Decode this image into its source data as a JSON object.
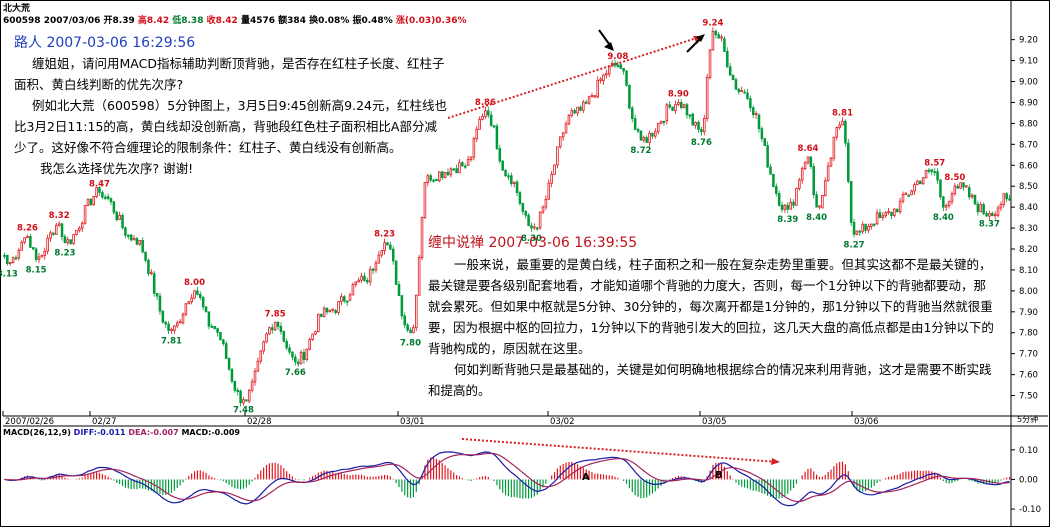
{
  "header": {
    "title": "北大荒",
    "code_date": "600598 2007/03/06",
    "open_label": "开8.39",
    "high_label": "高8.42",
    "low_label": "低8.38",
    "close_label": "收8.42",
    "volume_label": "量4576",
    "amount_label": "额384",
    "turnover_label": "换0.08%",
    "amp_label": "振0.48%",
    "change_label": "涨(0.03)0.36%"
  },
  "question": {
    "author_line": "路人 2007-03-06 16:29:56",
    "lines": [
      "缠姐姐，请问用MACD指标辅助判断顶背驰，是否存在红柱子长度、红柱子",
      "面积、黄白线判断的优先次序?",
      "例如北大荒（600598）5分钟图上，3月5日9:45创新高9.24元，红柱线也",
      "比3月2日11:15的高，黄白线却没创新高，背驰段红色柱子面积相比A部分减",
      "少了。这好像不符合缠理论的限制条件：红柱子、黄白线没有创新高。",
      "我怎么选择优先次序? 谢谢!"
    ]
  },
  "answer": {
    "author_line": "缠中说禅 2007-03-06 16:39:55",
    "lines": [
      "一般来说，最重要的是黄白线，柱子面积之和一般在复杂走势里重要。但其实这都不是最关键的，",
      "最关键是要各级别配套地看，才能知道哪个背驰的力度大，否则，每一个1分钟以下的背驰都要动，那",
      "就会累死。但如果中枢就是5分钟、30分钟的，每次离开都是1分钟的，那1分钟以下的背驰当然就很重",
      "要，因为根据中枢的回拉力，1分钟以下的背驰引发大的回拉，这几天大盘的高低点都是由1分钟以下的",
      "背驰构成的，原因就在这里。",
      "何如判断背驰只是最基础的，关键是如何明确地根据综合的情况来利用背驰，这才是需要不断实践",
      "和提高的。"
    ]
  },
  "chart_data": [
    {
      "type": "candlestick",
      "title": "北大荒 600598",
      "period_label": "5分钟",
      "ylim": [
        7.45,
        9.27
      ],
      "y_ticks": [
        "9.20",
        "9.10",
        "9.00",
        "8.90",
        "8.80",
        "8.70",
        "8.60",
        "8.50",
        "8.40",
        "8.30",
        "8.20",
        "8.10",
        "8.00",
        "7.90",
        "7.80",
        "7.70",
        "7.60",
        "7.50"
      ],
      "x_tick_labels": [
        "2007/02/26",
        "02/27",
        "02/28",
        "03/01",
        "03/02",
        "03/05",
        "03/06"
      ],
      "price_labels": [
        {
          "text": "8.13",
          "kind": "low",
          "i": 1
        },
        {
          "text": "8.26",
          "kind": "high",
          "i": 8
        },
        {
          "text": "8.15",
          "kind": "low",
          "i": 11
        },
        {
          "text": "8.32",
          "kind": "high",
          "i": 19
        },
        {
          "text": "8.23",
          "kind": "low",
          "i": 21
        },
        {
          "text": "8.47",
          "kind": "high",
          "i": 33
        },
        {
          "text": "7.81",
          "kind": "low",
          "i": 58
        },
        {
          "text": "8.00",
          "kind": "high",
          "i": 66
        },
        {
          "text": "7.48",
          "kind": "low",
          "i": 83
        },
        {
          "text": "7.85",
          "kind": "high",
          "i": 94
        },
        {
          "text": "7.66",
          "kind": "low",
          "i": 101
        },
        {
          "text": "8.23",
          "kind": "high",
          "i": 132
        },
        {
          "text": "7.80",
          "kind": "low",
          "i": 141
        },
        {
          "text": "8.86",
          "kind": "high",
          "i": 167
        },
        {
          "text": "8.30",
          "kind": "low",
          "i": 183
        },
        {
          "text": "9.08",
          "kind": "high",
          "i": 213
        },
        {
          "text": "8.72",
          "kind": "low",
          "i": 221
        },
        {
          "text": "8.90",
          "kind": "high",
          "i": 234
        },
        {
          "text": "8.76",
          "kind": "low",
          "i": 242
        },
        {
          "text": "9.24",
          "kind": "high",
          "i": 246
        },
        {
          "text": "8.81",
          "kind": "high",
          "i": 291
        },
        {
          "text": "8.64",
          "kind": "high",
          "i": 279
        },
        {
          "text": "8.39",
          "kind": "low",
          "i": 272
        },
        {
          "text": "8.40",
          "kind": "low",
          "i": 282
        },
        {
          "text": "8.27",
          "kind": "low",
          "i": 295
        },
        {
          "text": "8.57",
          "kind": "high",
          "i": 323
        },
        {
          "text": "8.50",
          "kind": "high",
          "i": 330
        },
        {
          "text": "8.40",
          "kind": "low",
          "i": 326
        },
        {
          "text": "8.37",
          "kind": "low",
          "i": 342
        }
      ],
      "anchors": [
        [
          0,
          8.17
        ],
        [
          1,
          8.13
        ],
        [
          8,
          8.26
        ],
        [
          11,
          8.15
        ],
        [
          19,
          8.32
        ],
        [
          21,
          8.23
        ],
        [
          33,
          8.47
        ],
        [
          45,
          8.25
        ],
        [
          58,
          7.81
        ],
        [
          66,
          8.0
        ],
        [
          72,
          7.83
        ],
        [
          83,
          7.48
        ],
        [
          94,
          7.85
        ],
        [
          101,
          7.66
        ],
        [
          112,
          7.9
        ],
        [
          125,
          8.05
        ],
        [
          132,
          8.23
        ],
        [
          141,
          7.8
        ],
        [
          147,
          8.55
        ],
        [
          160,
          8.6
        ],
        [
          167,
          8.86
        ],
        [
          175,
          8.55
        ],
        [
          183,
          8.3
        ],
        [
          198,
          8.85
        ],
        [
          213,
          9.08
        ],
        [
          221,
          8.72
        ],
        [
          234,
          8.9
        ],
        [
          242,
          8.76
        ],
        [
          246,
          9.24
        ],
        [
          256,
          8.95
        ],
        [
          272,
          8.39
        ],
        [
          279,
          8.64
        ],
        [
          282,
          8.4
        ],
        [
          291,
          8.81
        ],
        [
          295,
          8.27
        ],
        [
          304,
          8.35
        ],
        [
          323,
          8.57
        ],
        [
          326,
          8.4
        ],
        [
          330,
          8.5
        ],
        [
          342,
          8.37
        ],
        [
          348,
          8.44
        ]
      ]
    },
    {
      "type": "macd",
      "params_label": "MACD(26,12,9)",
      "diff_label": "DIFF:-0.011",
      "dea_label": "DEA:-0.007",
      "macd_label": "MACD:-0.009",
      "ylim": [
        -0.12,
        0.15
      ],
      "y_ticks": [
        "0.10",
        "0.00",
        "-0.10"
      ],
      "markers": [
        "A",
        "B"
      ]
    }
  ],
  "colors": {
    "up": "#e0151b",
    "down": "#009a3a",
    "diff": "#1a1aa8",
    "dea": "#a2245e",
    "trend": "#d42025",
    "text_up": "#d01018",
    "text_down": "#007a30"
  }
}
